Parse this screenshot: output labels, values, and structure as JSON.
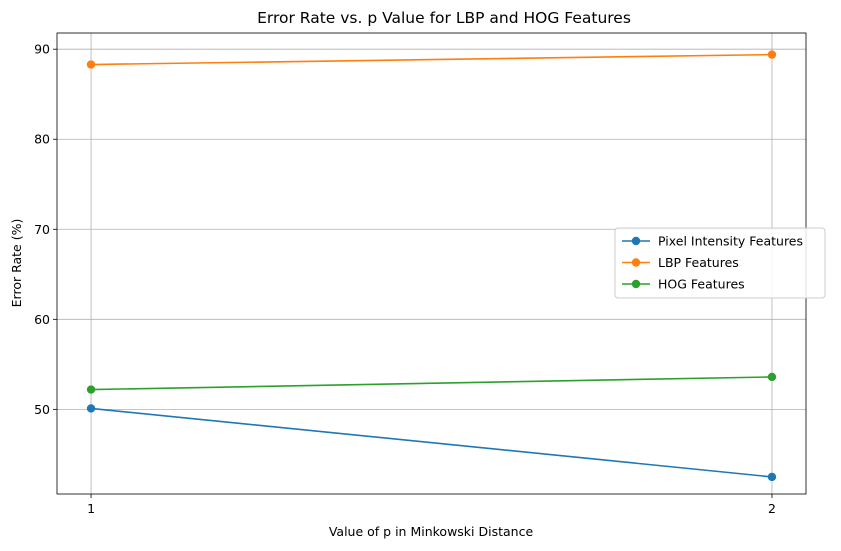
{
  "chart_data": {
    "type": "line",
    "title": "Error Rate vs. p Value for LBP and HOG Features",
    "xlabel": "Value of p in Minkowski Distance",
    "ylabel": "Error Rate (%)",
    "x": [
      1,
      2
    ],
    "x_tick_labels": [
      "1",
      "2"
    ],
    "xlim": [
      0.95,
      2.05
    ],
    "ylim": [
      40.6,
      91.8
    ],
    "y_ticks": [
      50,
      60,
      70,
      80,
      90
    ],
    "y_tick_labels": [
      "50",
      "60",
      "70",
      "80",
      "90"
    ],
    "grid": true,
    "legend_position": "center-right",
    "series": [
      {
        "name": "Pixel Intensity Features",
        "color": "#1f77b4",
        "values": [
          50.1,
          42.5
        ]
      },
      {
        "name": "LBP Features",
        "color": "#ff7f0e",
        "values": [
          88.3,
          89.4
        ]
      },
      {
        "name": "HOG Features",
        "color": "#2ca02c",
        "values": [
          52.2,
          53.6
        ]
      }
    ]
  }
}
